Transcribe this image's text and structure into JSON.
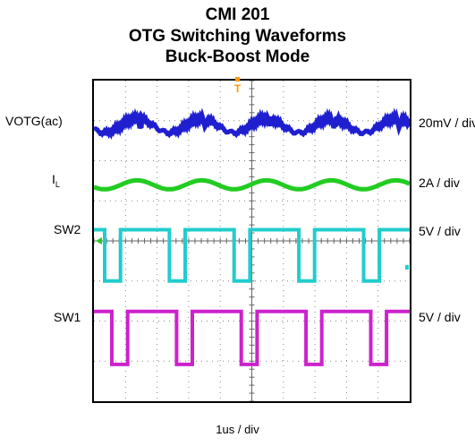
{
  "chart_data": {
    "type": "line",
    "title": [
      "CMI 201",
      "OTG Switching Waveforms",
      "Buck-Boost Mode"
    ],
    "xlabel": "1us / div",
    "grid": true,
    "grid_divisions": {
      "x": 10,
      "y": 8
    },
    "trigger_marker": "T",
    "channels": [
      {
        "label": "VOTG(ac)",
        "scale": "20mV / div",
        "color": "#1f1fd0"
      },
      {
        "label": "I",
        "label_sub": "L",
        "scale": "2A / div",
        "color": "#22cc22"
      },
      {
        "label": "SW2",
        "scale": "5V / div",
        "color": "#22cccc"
      },
      {
        "label": "SW1",
        "scale": "5V / div",
        "color": "#cc22cc"
      }
    ],
    "switching_period_div": 2.05
  }
}
